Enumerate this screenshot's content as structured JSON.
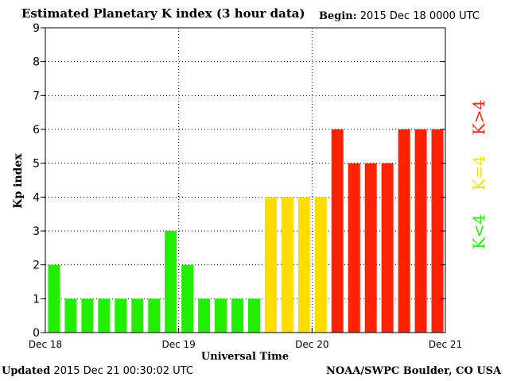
{
  "header": {
    "title": "Estimated Planetary K index (3 hour data)",
    "begin_label": "Begin:",
    "begin_value": "2015 Dec 18 0000 UTC"
  },
  "footer": {
    "updated_label": "Updated",
    "updated_value": "2015 Dec 21 00:30:02 UTC",
    "credit": "NOAA/SWPC Boulder, CO USA"
  },
  "chart_data": {
    "type": "bar",
    "title": "Estimated Planetary K index (3 hour data)",
    "xlabel": "Universal Time",
    "ylabel": "Kp index",
    "ylim": [
      0,
      9
    ],
    "yticks": [
      "0",
      "1",
      "2",
      "3",
      "4",
      "5",
      "6",
      "7",
      "8",
      "9"
    ],
    "xticks": [
      "Dec 18",
      "Dec 19",
      "Dec 20",
      "Dec 21"
    ],
    "grid": true,
    "values": [
      2,
      1,
      1,
      1,
      1,
      1,
      1,
      3,
      2,
      1,
      1,
      1,
      1,
      4,
      4,
      4,
      4,
      6,
      5,
      5,
      5,
      6,
      6,
      6
    ],
    "colors": {
      "low": "#22ee00",
      "equal": "#ffdd00",
      "high": "#ff2200"
    },
    "legend": [
      {
        "label": "K>4",
        "color": "#ff2200"
      },
      {
        "label": "K=4",
        "color": "#ffdd00"
      },
      {
        "label": "K<4",
        "color": "#22ee00"
      }
    ]
  }
}
